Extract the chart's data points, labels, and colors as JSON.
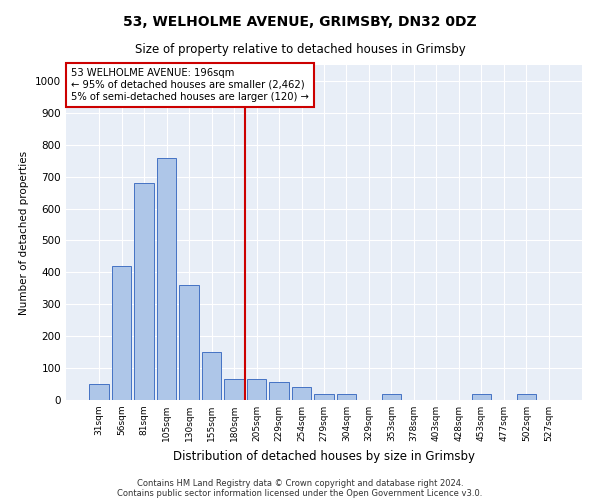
{
  "title": "53, WELHOLME AVENUE, GRIMSBY, DN32 0DZ",
  "subtitle": "Size of property relative to detached houses in Grimsby",
  "xlabel": "Distribution of detached houses by size in Grimsby",
  "ylabel": "Number of detached properties",
  "bar_labels": [
    "31sqm",
    "56sqm",
    "81sqm",
    "105sqm",
    "130sqm",
    "155sqm",
    "180sqm",
    "205sqm",
    "229sqm",
    "254sqm",
    "279sqm",
    "304sqm",
    "329sqm",
    "353sqm",
    "378sqm",
    "403sqm",
    "428sqm",
    "453sqm",
    "477sqm",
    "502sqm",
    "527sqm"
  ],
  "bar_values": [
    50,
    420,
    680,
    760,
    360,
    150,
    65,
    65,
    55,
    40,
    20,
    20,
    0,
    20,
    0,
    0,
    0,
    20,
    0,
    20,
    0
  ],
  "bar_color": "#aec6e8",
  "bar_edge_color": "#4472c4",
  "vline_color": "#cc0000",
  "vline_pos": 6.5,
  "annotation_text": "53 WELHOLME AVENUE: 196sqm\n← 95% of detached houses are smaller (2,462)\n5% of semi-detached houses are larger (120) →",
  "annotation_box_color": "#ffffff",
  "annotation_box_edge_color": "#cc0000",
  "ylim": [
    0,
    1050
  ],
  "yticks": [
    0,
    100,
    200,
    300,
    400,
    500,
    600,
    700,
    800,
    900,
    1000
  ],
  "background_color": "#e8eef7",
  "footer1": "Contains HM Land Registry data © Crown copyright and database right 2024.",
  "footer2": "Contains public sector information licensed under the Open Government Licence v3.0."
}
